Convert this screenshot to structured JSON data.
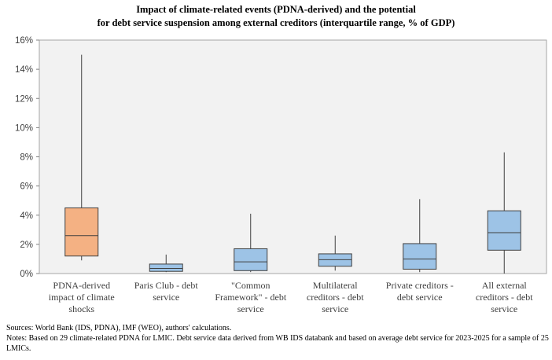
{
  "title_lines": [
    "Impact of climate-related events (PDNA-derived) and the potential",
    "for debt service suspension among external creditors (interquartile range, % of GDP)"
  ],
  "notes": {
    "sources": "Sources: World Bank (IDS, PDNA), IMF (WEO), authors' calculations.",
    "notes": "Notes: Based on 29 climate-related PDNA for LMIC. Debt service data derived from WB IDS databank and based on average debt service for 2023-2025 for a sample of 25 LMICs."
  },
  "chart_data": {
    "type": "boxplot",
    "title": "Impact of climate-related events (PDNA-derived) and the potential for debt service suspension among external creditors (interquartile range, % of GDP)",
    "ylim": [
      0,
      16
    ],
    "yticks": [
      0,
      2,
      4,
      6,
      8,
      10,
      12,
      14,
      16
    ],
    "ytick_labels": [
      "0%",
      "2%",
      "4%",
      "6%",
      "8%",
      "10%",
      "12%",
      "14%",
      "16%"
    ],
    "grid": false,
    "categories": [
      [
        "PDNA-derived",
        "impact of climate",
        "shocks"
      ],
      [
        "Paris Club - debt",
        "service"
      ],
      [
        "\"Common",
        "Framework\" - debt",
        "service"
      ],
      [
        "Multilateral",
        "creditors - debt",
        "service"
      ],
      [
        "Private creditors -",
        "debt service"
      ],
      [
        "All external",
        "creditors - debt",
        "service"
      ]
    ],
    "boxes": [
      {
        "min": 0.9,
        "q1": 1.2,
        "median": 2.6,
        "q3": 4.5,
        "max": 15.0,
        "color": "#f4b183"
      },
      {
        "min": 0.1,
        "q1": 0.15,
        "median": 0.35,
        "q3": 0.65,
        "max": 1.3,
        "color": "#9dc3e6"
      },
      {
        "min": 0.1,
        "q1": 0.2,
        "median": 0.8,
        "q3": 1.7,
        "max": 4.1,
        "color": "#9dc3e6"
      },
      {
        "min": 0.2,
        "q1": 0.5,
        "median": 0.95,
        "q3": 1.35,
        "max": 2.6,
        "color": "#9dc3e6"
      },
      {
        "min": 0.1,
        "q1": 0.3,
        "median": 1.0,
        "q3": 2.05,
        "max": 5.1,
        "color": "#9dc3e6"
      },
      {
        "min": 0.0,
        "q1": 1.6,
        "median": 2.8,
        "q3": 4.3,
        "max": 8.3,
        "color": "#9dc3e6"
      }
    ],
    "plot_background": "#f2f2f2",
    "box_border_color": "#404040"
  }
}
